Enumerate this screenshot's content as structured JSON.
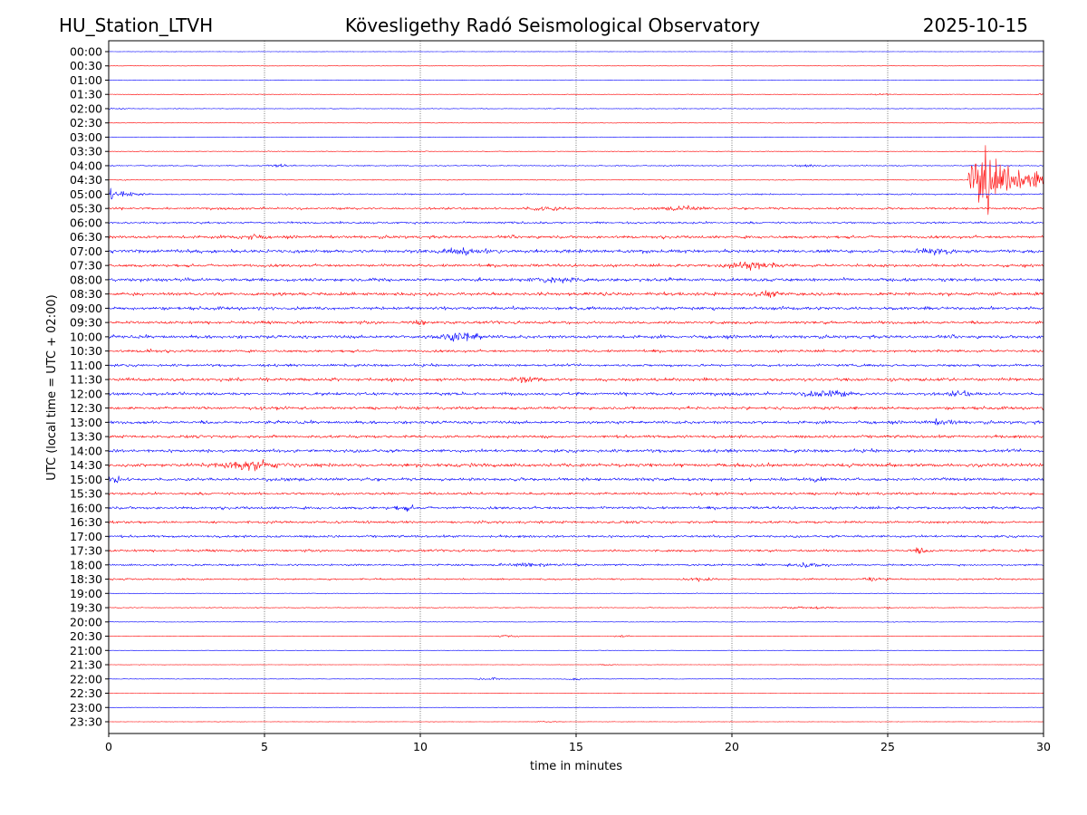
{
  "chart_data": {
    "type": "line",
    "title_left": "HU_Station_LTVH",
    "title_center": "Kövesligethy Radó Seismological Observatory",
    "title_right": "2025-10-15",
    "xlabel": "time in minutes",
    "ylabel": "UTC (local time = UTC + 02:00)",
    "xlim": [
      0,
      30
    ],
    "x_ticks": [
      "0",
      "5",
      "10",
      "15",
      "20",
      "25",
      "30"
    ],
    "x_tick_values": [
      0,
      5,
      10,
      15,
      20,
      25,
      30
    ],
    "grid": "vertical dotted at x ticks",
    "colors": [
      "#0000ff",
      "#ff0000"
    ],
    "rows": [
      {
        "label": "00:00",
        "noise": 0.3,
        "events": []
      },
      {
        "label": "00:30",
        "noise": 0.3,
        "events": []
      },
      {
        "label": "01:00",
        "noise": 0.4,
        "events": []
      },
      {
        "label": "01:30",
        "noise": 0.4,
        "events": [
          {
            "t": 24.8,
            "amp": 1.5,
            "dur": 0.8
          },
          {
            "t": 30.0,
            "amp": 1.5,
            "dur": 0.5
          }
        ]
      },
      {
        "label": "02:00",
        "noise": 0.5,
        "events": [
          {
            "t": 0.2,
            "amp": 1.8,
            "dur": 0.8
          }
        ]
      },
      {
        "label": "02:30",
        "noise": 0.4,
        "events": []
      },
      {
        "label": "03:00",
        "noise": 0.4,
        "events": []
      },
      {
        "label": "03:30",
        "noise": 0.5,
        "events": []
      },
      {
        "label": "04:00",
        "noise": 0.8,
        "events": [
          {
            "t": 5.5,
            "amp": 2.5,
            "dur": 0.8
          },
          {
            "t": 22.5,
            "amp": 1.8,
            "dur": 1.0
          }
        ]
      },
      {
        "label": "04:30",
        "noise": 0.6,
        "events": [
          {
            "t": 27.6,
            "amp": 70,
            "dur": 3.0,
            "quake": true
          }
        ]
      },
      {
        "label": "05:00",
        "noise": 1.0,
        "events": [
          {
            "t": 0.0,
            "amp": 9,
            "dur": 2.0
          }
        ]
      },
      {
        "label": "05:30",
        "noise": 1.5,
        "events": [
          {
            "t": 14.0,
            "amp": 3,
            "dur": 1.5
          },
          {
            "t": 18.5,
            "amp": 3,
            "dur": 1.5
          }
        ]
      },
      {
        "label": "06:00",
        "noise": 1.5,
        "events": []
      },
      {
        "label": "06:30",
        "noise": 2.0,
        "events": [
          {
            "t": 4.5,
            "amp": 4,
            "dur": 1.0
          }
        ]
      },
      {
        "label": "07:00",
        "noise": 2.3,
        "events": [
          {
            "t": 11.5,
            "amp": 4,
            "dur": 2.0
          },
          {
            "t": 26.5,
            "amp": 4,
            "dur": 1.5
          }
        ]
      },
      {
        "label": "07:30",
        "noise": 2.0,
        "events": [
          {
            "t": 20.5,
            "amp": 6,
            "dur": 1.8
          }
        ]
      },
      {
        "label": "08:00",
        "noise": 2.3,
        "events": [
          {
            "t": 14.5,
            "amp": 4,
            "dur": 1.5
          }
        ]
      },
      {
        "label": "08:30",
        "noise": 2.3,
        "events": [
          {
            "t": 21.2,
            "amp": 4,
            "dur": 1.0
          }
        ]
      },
      {
        "label": "09:00",
        "noise": 2.2,
        "events": []
      },
      {
        "label": "09:30",
        "noise": 2.0,
        "events": [
          {
            "t": 10.0,
            "amp": 3,
            "dur": 0.5
          }
        ]
      },
      {
        "label": "10:00",
        "noise": 2.2,
        "events": [
          {
            "t": 11.3,
            "amp": 7,
            "dur": 1.5
          }
        ]
      },
      {
        "label": "10:30",
        "noise": 1.8,
        "events": [
          {
            "t": 1.3,
            "amp": 3.5,
            "dur": 0.4
          }
        ]
      },
      {
        "label": "11:00",
        "noise": 1.8,
        "events": []
      },
      {
        "label": "11:30",
        "noise": 2.3,
        "events": [
          {
            "t": 13.3,
            "amp": 3.5,
            "dur": 1.0
          }
        ]
      },
      {
        "label": "12:00",
        "noise": 2.1,
        "events": [
          {
            "t": 23.0,
            "amp": 7,
            "dur": 1.3
          },
          {
            "t": 27.3,
            "amp": 4,
            "dur": 0.8
          }
        ]
      },
      {
        "label": "12:30",
        "noise": 2.0,
        "events": []
      },
      {
        "label": "13:00",
        "noise": 2.1,
        "events": [
          {
            "t": 26.8,
            "amp": 4,
            "dur": 1.0
          }
        ]
      },
      {
        "label": "13:30",
        "noise": 2.0,
        "events": []
      },
      {
        "label": "14:00",
        "noise": 2.2,
        "events": []
      },
      {
        "label": "14:30",
        "noise": 2.5,
        "events": [
          {
            "t": 4.5,
            "amp": 7,
            "dur": 2.0
          }
        ]
      },
      {
        "label": "15:00",
        "noise": 2.2,
        "events": [
          {
            "t": 0.2,
            "amp": 5,
            "dur": 0.4
          },
          {
            "t": 22.7,
            "amp": 4,
            "dur": 0.4
          }
        ]
      },
      {
        "label": "15:30",
        "noise": 1.8,
        "events": []
      },
      {
        "label": "16:00",
        "noise": 1.9,
        "events": [
          {
            "t": 9.5,
            "amp": 3,
            "dur": 1.0
          }
        ]
      },
      {
        "label": "16:30",
        "noise": 1.8,
        "events": []
      },
      {
        "label": "17:00",
        "noise": 1.7,
        "events": []
      },
      {
        "label": "17:30",
        "noise": 1.6,
        "events": [
          {
            "t": 26.0,
            "amp": 3,
            "dur": 0.8
          }
        ]
      },
      {
        "label": "18:00",
        "noise": 1.4,
        "events": [
          {
            "t": 13.5,
            "amp": 2.5,
            "dur": 2.0
          },
          {
            "t": 22.5,
            "amp": 2.5,
            "dur": 1.5
          }
        ]
      },
      {
        "label": "18:30",
        "noise": 1.2,
        "events": [
          {
            "t": 19.0,
            "amp": 2.5,
            "dur": 1.0
          },
          {
            "t": 24.5,
            "amp": 2.5,
            "dur": 0.8
          }
        ]
      },
      {
        "label": "19:00",
        "noise": 0.5,
        "events": []
      },
      {
        "label": "19:30",
        "noise": 0.6,
        "events": [
          {
            "t": 22.5,
            "amp": 1.8,
            "dur": 2.0
          },
          {
            "t": 25.0,
            "amp": 3,
            "dur": 0.3
          }
        ]
      },
      {
        "label": "20:00",
        "noise": 0.4,
        "events": []
      },
      {
        "label": "20:30",
        "noise": 0.4,
        "events": [
          {
            "t": 12.8,
            "amp": 1.5,
            "dur": 1.0
          },
          {
            "t": 16.5,
            "amp": 1.5,
            "dur": 0.6
          }
        ]
      },
      {
        "label": "21:00",
        "noise": 0.3,
        "events": []
      },
      {
        "label": "21:30",
        "noise": 0.3,
        "events": [
          {
            "t": 16.0,
            "amp": 1.5,
            "dur": 0.6
          }
        ]
      },
      {
        "label": "22:00",
        "noise": 0.4,
        "events": [
          {
            "t": 12.2,
            "amp": 2,
            "dur": 1.0
          },
          {
            "t": 15.0,
            "amp": 1.8,
            "dur": 0.8
          }
        ]
      },
      {
        "label": "22:30",
        "noise": 0.3,
        "events": []
      },
      {
        "label": "23:00",
        "noise": 0.3,
        "events": []
      },
      {
        "label": "23:30",
        "noise": 0.3,
        "events": [
          {
            "t": 14.0,
            "amp": 1.2,
            "dur": 0.8
          }
        ]
      }
    ]
  }
}
